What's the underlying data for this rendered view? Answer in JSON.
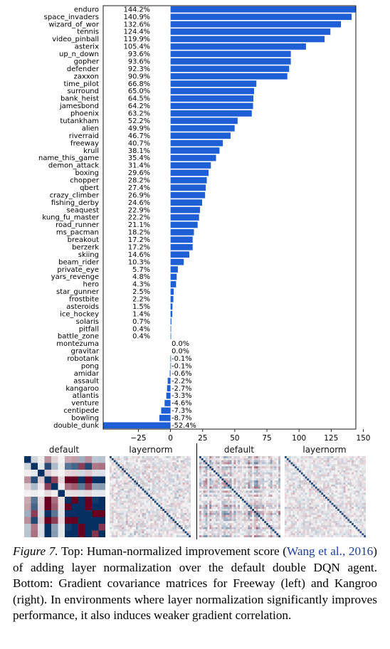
{
  "chart_data": {
    "type": "bar",
    "orientation": "horizontal",
    "categories": [
      "enduro",
      "space_invaders",
      "wizard_of_wor",
      "tennis",
      "video_pinball",
      "asterix",
      "up_n_down",
      "gopher",
      "defender",
      "zaxxon",
      "time_pilot",
      "surround",
      "bank_heist",
      "jamesbond",
      "phoenix",
      "tutankham",
      "alien",
      "riverraid",
      "freeway",
      "krull",
      "name_this_game",
      "demon_attack",
      "boxing",
      "chopper",
      "qbert",
      "crazy_climber",
      "fishing_derby",
      "seaquest",
      "kung_fu_master",
      "road_runner",
      "ms_pacman",
      "breakout",
      "berzerk",
      "skiing",
      "beam_rider",
      "private_eye",
      "yars_revenge",
      "hero",
      "star_gunner",
      "frostbite",
      "asteroids",
      "ice_hockey",
      "solaris",
      "pitfall",
      "battle_zone",
      "montezuma",
      "gravitar",
      "robotank",
      "pong",
      "amidar",
      "assault",
      "kangaroo",
      "atlantis",
      "venture",
      "centipede",
      "bowling",
      "double_dunk"
    ],
    "values": [
      144.2,
      140.9,
      132.6,
      124.4,
      119.9,
      105.4,
      93.6,
      93.6,
      92.3,
      90.9,
      66.8,
      65.0,
      64.5,
      64.2,
      63.2,
      52.2,
      49.9,
      46.7,
      40.7,
      38.1,
      35.4,
      31.4,
      29.6,
      28.2,
      27.4,
      26.9,
      24.6,
      22.9,
      22.2,
      21.1,
      18.2,
      17.2,
      17.2,
      14.6,
      10.3,
      5.7,
      4.8,
      4.3,
      2.5,
      2.2,
      1.5,
      1.4,
      0.7,
      0.4,
      0.4,
      0.0,
      0.0,
      -0.1,
      -0.1,
      -0.6,
      -2.2,
      -2.7,
      -3.3,
      -4.6,
      -7.3,
      -8.7,
      -52.4
    ],
    "value_labels": [
      "144.2%",
      "140.9%",
      "132.6%",
      "124.4%",
      "119.9%",
      "105.4%",
      "93.6%",
      "93.6%",
      "92.3%",
      "90.9%",
      "66.8%",
      "65.0%",
      "64.5%",
      "64.2%",
      "63.2%",
      "52.2%",
      "49.9%",
      "46.7%",
      "40.7%",
      "38.1%",
      "35.4%",
      "31.4%",
      "29.6%",
      "28.2%",
      "27.4%",
      "26.9%",
      "24.6%",
      "22.9%",
      "22.2%",
      "21.1%",
      "18.2%",
      "17.2%",
      "17.2%",
      "14.6%",
      "10.3%",
      "5.7%",
      "4.8%",
      "4.3%",
      "2.5%",
      "2.2%",
      "1.5%",
      "1.4%",
      "0.7%",
      "0.4%",
      "0.4%",
      "0.0%",
      "0.0%",
      "-0.1%",
      "-0.1%",
      "-0.6%",
      "-2.2%",
      "-2.7%",
      "-3.3%",
      "-4.6%",
      "-7.3%",
      "-8.7%",
      "-52.4%"
    ],
    "xticks": [
      -25,
      0,
      25,
      50,
      75,
      100,
      125,
      150
    ],
    "xtick_labels": [
      "−25",
      "0",
      "25",
      "50",
      "75",
      "100",
      "125",
      "150"
    ],
    "xlim": [
      -52.4,
      144.2
    ],
    "bar_color": "#1f5fd6",
    "xlabel": "",
    "ylabel": "",
    "grid": false
  },
  "heatmaps": {
    "freeway_label_default": "default",
    "freeway_label_layernorm": "layernorm",
    "kangaroo_label_default": "default",
    "kangaroo_label_layernorm": "layernorm"
  },
  "caption": {
    "figure_label": "Figure 7.",
    "text_before_cite": " Top: Human-normalized improvement score (",
    "cite": "Wang et al., 2016",
    "text_after_cite": ") of adding layer normalization over the default double DQN agent. Bottom: Gradient covariance matrices for Freeway (left) and Kangroo (right). In environments where layer normalization significantly improves performance, it also induces weaker gradient correlation."
  }
}
